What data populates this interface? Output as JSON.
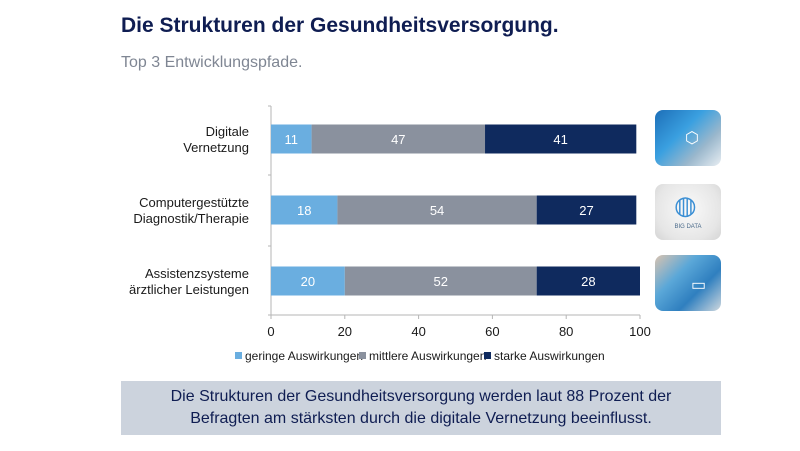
{
  "header": {
    "title": "Die Strukturen der Gesundheitsversorgung.",
    "subtitle": "Top 3 Entwicklungspfade."
  },
  "thumbnails": [
    {
      "icon": "network-doctor-icon",
      "caption": ""
    },
    {
      "icon": "big-data-globe-icon",
      "caption": "BIG DATA"
    },
    {
      "icon": "telemedicine-laptop-icon",
      "caption": ""
    }
  ],
  "footer": {
    "line1": "Die Strukturen der Gesundheitsversorgung werden laut 88 Prozent der",
    "line2": "Befragten am stärksten durch die digitale Vernetzung beeinflusst."
  },
  "chart_data": {
    "type": "bar",
    "orientation": "horizontal",
    "stacked": true,
    "title": "Die Strukturen der Gesundheitsversorgung.",
    "subtitle": "Top 3 Entwicklungspfade.",
    "categories": [
      [
        "Digitale",
        "Vernetzung"
      ],
      [
        "Computergestützte",
        "Diagnostik/Therapie"
      ],
      [
        "Assistenzsysteme",
        "ärztlicher Leistungen"
      ]
    ],
    "series": [
      {
        "name": "geringe Auswirkungen",
        "color": "#6aaee0",
        "values": [
          11,
          18,
          20
        ]
      },
      {
        "name": "mittlere Auswirkungen",
        "color": "#8a919e",
        "values": [
          47,
          54,
          52
        ]
      },
      {
        "name": "starke Auswirkungen",
        "color": "#0f2a5e",
        "values": [
          41,
          27,
          28
        ]
      }
    ],
    "xlabel": "",
    "ylabel": "",
    "xlim": [
      0,
      100
    ],
    "xticks": [
      0,
      20,
      40,
      60,
      80,
      100
    ],
    "grid": false,
    "legend": "bottom-center"
  }
}
